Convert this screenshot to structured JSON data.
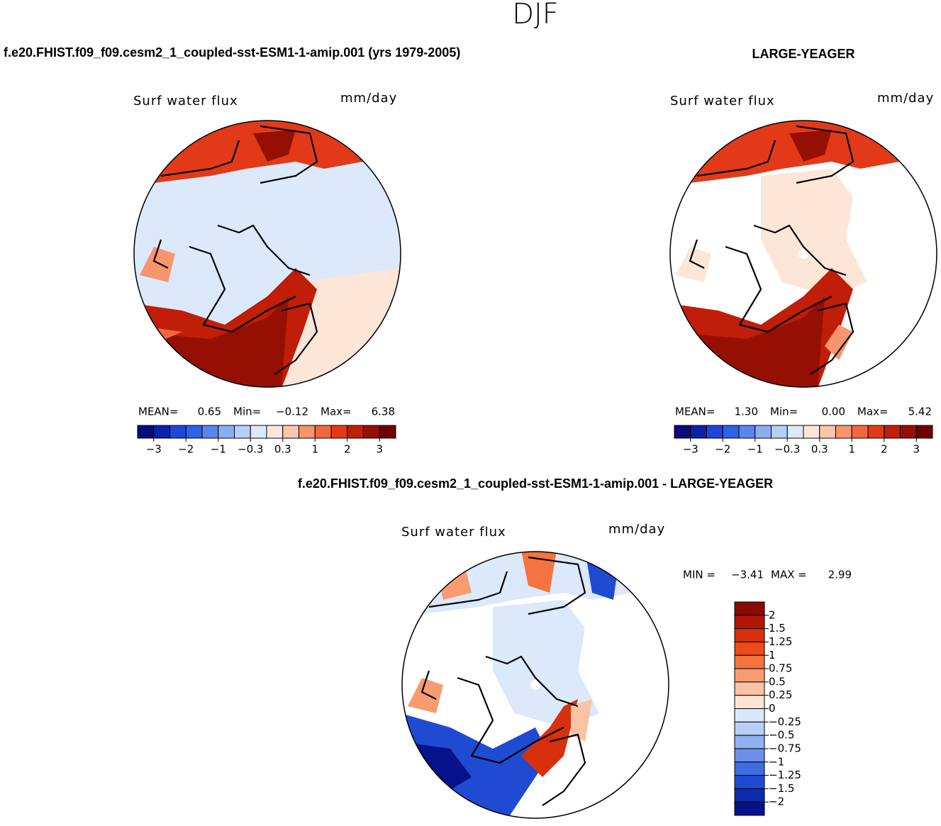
{
  "title": "DJF",
  "panels": [
    {
      "header": "f.e20.FHIST.f09_f09.cesm2_1_coupled-sst-ESM1-1-amip.001 (yrs 1979-2005)",
      "field": "Surf water flux",
      "units": "mm/day",
      "stats": [
        {
          "label": "MEAN=",
          "value": "0.65"
        },
        {
          "label": "Min=",
          "value": "−0.12"
        },
        {
          "label": "Max=",
          "value": "6.38"
        }
      ],
      "colorbar": {
        "colors": [
          "#0a0a78",
          "#0b22a8",
          "#1f46d6",
          "#2f62e6",
          "#5a86ec",
          "#8aaef2",
          "#b6cff7",
          "#dbe9fb",
          "#fde6d8",
          "#fbc6ab",
          "#f7956e",
          "#f2673f",
          "#e23a18",
          "#c01e08",
          "#951003",
          "#700000"
        ],
        "labels": [
          "−3",
          "−2",
          "−1",
          "−0.3",
          "0.3",
          "1",
          "2",
          "3"
        ]
      }
    },
    {
      "header": "LARGE-YEAGER",
      "field": "Surf water flux",
      "units": "mm/day",
      "stats": [
        {
          "label": "MEAN=",
          "value": "1.30"
        },
        {
          "label": "Min=",
          "value": "0.00"
        },
        {
          "label": "Max=",
          "value": "5.42"
        }
      ],
      "colorbar": {
        "colors": [
          "#0a0a78",
          "#0b22a8",
          "#1f46d6",
          "#2f62e6",
          "#5a86ec",
          "#8aaef2",
          "#b6cff7",
          "#dbe9fb",
          "#fde6d8",
          "#fbc6ab",
          "#f7956e",
          "#f2673f",
          "#e23a18",
          "#c01e08",
          "#951003",
          "#700000"
        ],
        "labels": [
          "−3",
          "−2",
          "−1",
          "−0.3",
          "0.3",
          "1",
          "2",
          "3"
        ]
      }
    }
  ],
  "difference": {
    "header": "f.e20.FHIST.f09_f09.cesm2_1_coupled-sst-ESM1-1-amip.001 - LARGE-YEAGER",
    "field": "Surf water flux",
    "units": "mm/day",
    "stats": [
      {
        "label": "MIN =",
        "value": "−3.41"
      },
      {
        "label": "MAX =",
        "value": "2.99"
      }
    ],
    "colorbar": {
      "colors": [
        "#8b0a00",
        "#b31503",
        "#d8300c",
        "#ee4a1c",
        "#f4733f",
        "#f89b70",
        "#fbc3a5",
        "#fde4d5",
        "#dbe8fb",
        "#b9cff7",
        "#8fb0f1",
        "#6a90ea",
        "#3f6ee2",
        "#1f4bd3",
        "#0c2cb0",
        "#06128a"
      ],
      "labels": [
        "2",
        "1.5",
        "1.25",
        "1",
        "0.75",
        "0.5",
        "0.25",
        "0",
        "−0.25",
        "−0.5",
        "−0.75",
        "−1",
        "−1.25",
        "−1.5",
        "−2"
      ]
    }
  }
}
